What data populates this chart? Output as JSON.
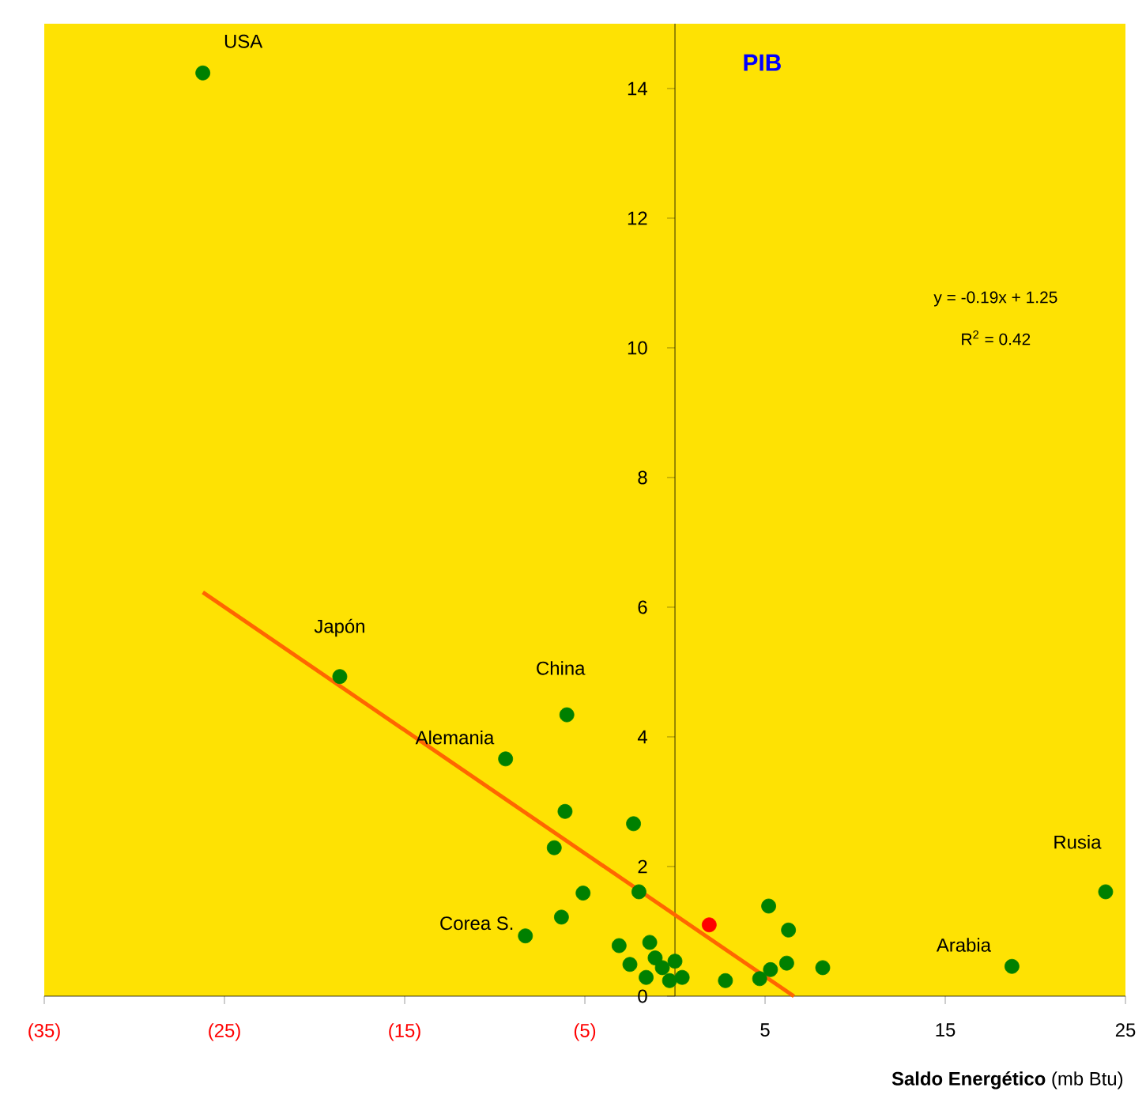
{
  "chart_data": {
    "type": "scatter",
    "ylabel": "PIB",
    "xlabel": "**Saldo Energético** (mb Btu)",
    "xlim": [
      -35,
      25
    ],
    "ylim": [
      0,
      15
    ],
    "xticks": [
      {
        "value": -35,
        "label": "(35)"
      },
      {
        "value": -25,
        "label": "(25)"
      },
      {
        "value": -15,
        "label": "(15)"
      },
      {
        "value": -5,
        "label": "(5)"
      },
      5,
      15,
      25
    ],
    "yticks": [
      0,
      2,
      4,
      6,
      8,
      10,
      12,
      14
    ],
    "grid": false,
    "series": [
      {
        "color": "#008000",
        "x": [
          -26.2,
          -18.6,
          -6.0,
          -9.4,
          -6.1,
          -6.7,
          -2.3,
          -5.1,
          -2.0,
          -6.3,
          -8.3,
          -3.1,
          -1.4,
          5.2,
          6.3,
          6.2,
          8.2,
          18.7,
          23.9,
          2.8,
          4.7,
          5.3,
          -2.5,
          -1.6,
          -0.7,
          -0.3,
          0.4,
          -1.1,
          0.0
        ],
        "values": [
          14.24,
          4.93,
          4.34,
          3.66,
          2.85,
          2.29,
          2.66,
          1.59,
          1.61,
          1.22,
          0.93,
          0.78,
          0.83,
          1.39,
          1.02,
          0.51,
          0.44,
          0.46,
          1.61,
          0.24,
          0.27,
          0.41,
          0.49,
          0.29,
          0.44,
          0.24,
          0.29,
          0.59,
          0.54
        ]
      },
      {
        "color": "#ff0000",
        "x": [
          1.9
        ],
        "values": [
          1.1
        ]
      },
      {
        "type": "line",
        "marker": "none",
        "color": "#ff6600",
        "x": [
          -26.2,
          6.6
        ],
        "values": [
          6.23,
          0
        ]
      }
    ],
    "annotations": [
      {
        "text": "USA",
        "x": -26.2,
        "y": 14.24
      },
      {
        "text": "Japón",
        "x": -18.6,
        "y": 4.93
      },
      {
        "text": "China",
        "x": -6.0,
        "y": 4.34
      },
      {
        "text": "Alemania",
        "x": -9.4,
        "y": 3.66
      },
      {
        "text": "Corea S.",
        "x": -8.3,
        "y": 0.93
      },
      {
        "text": "Rusia",
        "x": 23.9,
        "y": 1.61
      },
      {
        "text": "Arabia",
        "x": 18.7,
        "y": 0.46
      },
      "y = -0.19x + 1.25",
      "R$^{2}$ = 0.42"
    ]
  }
}
